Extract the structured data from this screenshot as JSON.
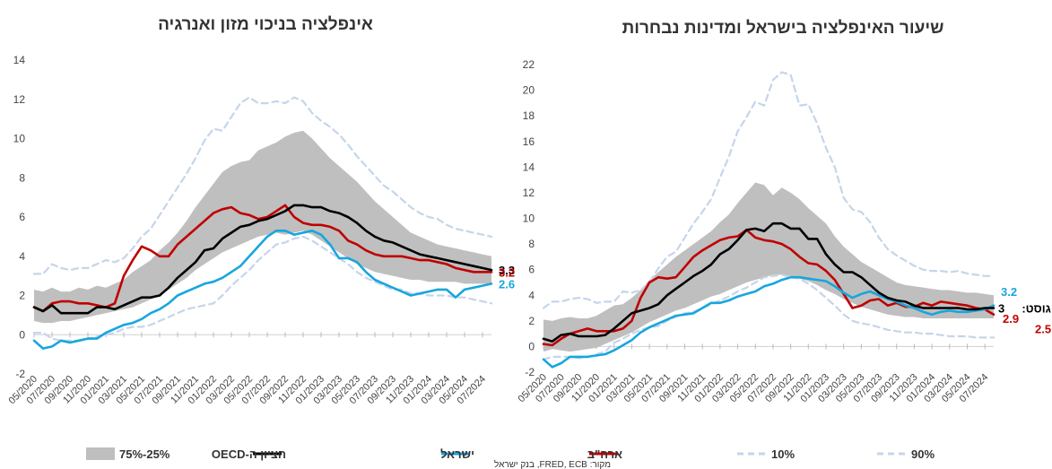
{
  "colors": {
    "band": "#bfbfbf",
    "oecd": "#000000",
    "israel": "#17a6de",
    "usa": "#c00000",
    "pct": "#c5d5ea"
  },
  "legend": {
    "band": "75%-25%",
    "oecd": "חציון ה-OECD",
    "israel": "ישראל",
    "usa": "ארה\"ב",
    "p10": "10%",
    "p90": "90%"
  },
  "source": "מקור: FRED, ECB, בנק ישראל",
  "chart_data": [
    {
      "type": "line",
      "title": "אינפלציה בניכוי מזון ואנרגיה",
      "ylim": [
        -2,
        14
      ],
      "yticks": [
        "-2",
        "0",
        "2",
        "4",
        "6",
        "8",
        "10",
        "12",
        "14"
      ],
      "x_start": "2020-05",
      "x_end": "2024-08",
      "xticks": [
        "05/2020",
        "07/2020",
        "09/2020",
        "11/2020",
        "01/2021",
        "03/2021",
        "05/2021",
        "07/2021",
        "09/2021",
        "11/2021",
        "01/2022",
        "03/2022",
        "05/2022",
        "07/2022",
        "09/2022",
        "11/2022",
        "01/2023",
        "03/2023",
        "05/2023",
        "07/2023",
        "09/2023",
        "11/2023",
        "01/2024",
        "03/2024",
        "05/2024",
        "07/2024"
      ],
      "series": [
        {
          "key": "p90",
          "values": [
            3.1,
            3.1,
            3.6,
            3.4,
            3.3,
            3.4,
            3.4,
            3.6,
            3.8,
            3.7,
            3.9,
            4.4,
            5.0,
            5.4,
            6.1,
            6.8,
            7.5,
            8.2,
            9.0,
            9.9,
            10.5,
            10.4,
            11.1,
            11.8,
            12.1,
            11.8,
            11.8,
            11.9,
            11.8,
            12.1,
            11.9,
            11.3,
            10.9,
            10.6,
            10.2,
            9.7,
            9.1,
            8.6,
            8.1,
            7.6,
            7.3,
            6.9,
            6.5,
            6.2,
            6.0,
            5.9,
            5.6,
            5.4,
            5.3,
            5.2,
            5.1,
            5.0
          ]
        },
        {
          "key": "band_hi",
          "values": [
            2.3,
            2.2,
            2.4,
            2.2,
            2.2,
            2.4,
            2.3,
            2.5,
            2.4,
            2.6,
            2.8,
            3.2,
            3.5,
            3.8,
            4.3,
            4.7,
            5.2,
            5.8,
            6.5,
            7.1,
            7.7,
            8.3,
            8.6,
            8.8,
            8.9,
            9.4,
            9.6,
            9.8,
            10.1,
            10.3,
            10.4,
            10.0,
            9.5,
            9.0,
            8.6,
            8.2,
            7.8,
            7.3,
            6.8,
            6.4,
            6.0,
            5.6,
            5.2,
            5.0,
            4.8,
            4.6,
            4.5,
            4.4,
            4.3,
            4.2,
            4.1,
            4.0
          ]
        },
        {
          "key": "band_lo",
          "values": [
            0.7,
            0.6,
            0.6,
            0.7,
            0.7,
            0.8,
            0.9,
            1.0,
            1.1,
            1.2,
            1.3,
            1.4,
            1.6,
            1.8,
            2.0,
            2.3,
            2.6,
            2.9,
            3.3,
            3.6,
            3.9,
            4.2,
            4.4,
            4.6,
            4.8,
            5.0,
            5.1,
            5.2,
            5.1,
            5.2,
            5.3,
            5.1,
            4.8,
            4.5,
            4.2,
            3.9,
            3.6,
            3.4,
            3.2,
            3.1,
            3.0,
            2.9,
            2.8,
            2.8,
            2.7,
            2.7,
            2.7,
            2.7,
            2.6,
            2.6,
            2.6,
            2.6
          ]
        },
        {
          "key": "oecd",
          "values": [
            1.4,
            1.2,
            1.5,
            1.1,
            1.1,
            1.1,
            1.1,
            1.4,
            1.4,
            1.3,
            1.5,
            1.7,
            1.9,
            1.9,
            2.0,
            2.4,
            2.9,
            3.3,
            3.7,
            4.3,
            4.4,
            4.9,
            5.2,
            5.5,
            5.6,
            5.8,
            5.9,
            6.1,
            6.3,
            6.6,
            6.6,
            6.5,
            6.5,
            6.3,
            6.2,
            6.0,
            5.7,
            5.3,
            5.0,
            4.8,
            4.7,
            4.5,
            4.3,
            4.1,
            4.0,
            3.9,
            3.8,
            3.7,
            3.6,
            3.5,
            3.4,
            3.3
          ]
        },
        {
          "key": "israel",
          "values": [
            -0.3,
            -0.7,
            -0.6,
            -0.3,
            -0.4,
            -0.3,
            -0.2,
            -0.2,
            0.1,
            0.3,
            0.5,
            0.6,
            0.8,
            1.1,
            1.3,
            1.6,
            2.0,
            2.2,
            2.4,
            2.6,
            2.7,
            2.9,
            3.2,
            3.5,
            4.0,
            4.5,
            5.0,
            5.3,
            5.3,
            5.1,
            5.2,
            5.3,
            5.1,
            4.6,
            3.9,
            3.9,
            3.7,
            3.2,
            2.8,
            2.6,
            2.4,
            2.2,
            2.0,
            2.1,
            2.2,
            2.3,
            2.3,
            1.9,
            2.3,
            2.4,
            2.5,
            2.6
          ]
        },
        {
          "key": "usa",
          "values": [
            1.4,
            1.2,
            1.6,
            1.7,
            1.7,
            1.6,
            1.6,
            1.5,
            1.4,
            1.6,
            3.0,
            3.8,
            4.5,
            4.3,
            4.0,
            4.0,
            4.6,
            5.0,
            5.4,
            5.8,
            6.2,
            6.4,
            6.5,
            6.2,
            6.1,
            5.9,
            6.0,
            6.3,
            6.6,
            6.0,
            5.7,
            5.6,
            5.6,
            5.5,
            5.3,
            4.8,
            4.6,
            4.3,
            4.1,
            4.0,
            4.0,
            4.0,
            3.9,
            3.8,
            3.8,
            3.7,
            3.6,
            3.4,
            3.3,
            3.2,
            3.2,
            3.2
          ]
        },
        {
          "key": "p10",
          "values": [
            0.1,
            0.1,
            -0.2,
            -0.3,
            -0.3,
            -0.3,
            -0.2,
            -0.1,
            0.0,
            0.1,
            0.3,
            0.4,
            0.4,
            0.5,
            0.7,
            0.9,
            1.1,
            1.3,
            1.4,
            1.5,
            1.6,
            2.0,
            2.5,
            2.9,
            3.3,
            3.8,
            4.2,
            4.6,
            4.7,
            4.9,
            5.0,
            4.8,
            4.5,
            4.2,
            3.9,
            3.6,
            3.2,
            2.9,
            2.7,
            2.5,
            2.3,
            2.3,
            2.1,
            2.1,
            2.0,
            2.0,
            2.0,
            1.9,
            1.9,
            1.8,
            1.7,
            1.6
          ]
        }
      ],
      "end_labels": [
        {
          "text": "3.3",
          "color": "oecd",
          "y": 3.3
        },
        {
          "text": "3.2",
          "color": "usa",
          "y": 3.2
        },
        {
          "text": "2.6",
          "color": "israel",
          "y": 2.6
        }
      ]
    },
    {
      "type": "line",
      "title": "שיעור האינפלציה בישראל ומדינות נבחרות",
      "ylim": [
        -2,
        22
      ],
      "yticks": [
        "-2",
        "0",
        "2",
        "4",
        "6",
        "8",
        "10",
        "12",
        "14",
        "16",
        "18",
        "20",
        "22"
      ],
      "x_start": "2020-05",
      "x_end": "2024-08",
      "xticks": [
        "05/2020",
        "07/2020",
        "09/2020",
        "11/2020",
        "01/2021",
        "03/2021",
        "05/2021",
        "07/2021",
        "09/2021",
        "11/2021",
        "01/2022",
        "03/2022",
        "05/2022",
        "07/2022",
        "09/2022",
        "11/2022",
        "01/2023",
        "03/2023",
        "05/2023",
        "07/2023",
        "09/2023",
        "11/2023",
        "01/2024",
        "03/2024",
        "05/2024",
        "07/2024"
      ],
      "series": [
        {
          "key": "p90",
          "values": [
            3.0,
            3.5,
            3.5,
            3.7,
            3.8,
            3.7,
            3.4,
            3.5,
            3.5,
            4.3,
            4.2,
            4.4,
            5.0,
            6.1,
            7.0,
            7.4,
            8.5,
            9.6,
            10.5,
            11.5,
            13.2,
            14.8,
            16.8,
            17.9,
            19.1,
            18.8,
            20.8,
            21.4,
            21.2,
            18.8,
            18.9,
            17.4,
            15.5,
            14.0,
            11.6,
            10.7,
            10.5,
            9.7,
            8.5,
            7.6,
            7.1,
            6.7,
            6.3,
            6.0,
            5.9,
            5.9,
            5.8,
            5.9,
            5.7,
            5.6,
            5.5,
            5.5
          ]
        },
        {
          "key": "band_hi",
          "values": [
            2.1,
            2.0,
            2.2,
            2.3,
            2.2,
            2.2,
            2.4,
            2.8,
            3.2,
            3.3,
            3.8,
            4.4,
            5.2,
            5.8,
            6.4,
            7.0,
            7.5,
            8.0,
            8.5,
            9.0,
            9.7,
            10.3,
            11.2,
            12.0,
            12.8,
            12.6,
            11.8,
            12.4,
            12.0,
            11.5,
            10.8,
            10.2,
            9.6,
            8.6,
            7.8,
            7.2,
            6.6,
            6.2,
            5.8,
            5.4,
            5.0,
            4.8,
            4.7,
            4.6,
            4.5,
            4.4,
            4.4,
            4.3,
            4.2,
            4.2,
            4.1,
            4.0
          ]
        },
        {
          "key": "band_lo",
          "values": [
            -0.4,
            -0.2,
            -0.3,
            -0.4,
            -0.3,
            -0.2,
            -0.1,
            0.2,
            0.5,
            0.8,
            1.1,
            1.5,
            1.9,
            2.2,
            2.5,
            2.8,
            3.0,
            3.3,
            3.6,
            3.9,
            4.1,
            4.4,
            4.7,
            5.0,
            5.2,
            5.4,
            5.6,
            5.6,
            5.5,
            5.3,
            5.1,
            4.8,
            4.4,
            4.1,
            3.7,
            3.4,
            3.1,
            2.9,
            2.7,
            2.5,
            2.4,
            2.3,
            2.3,
            2.2,
            2.2,
            2.2,
            2.2,
            2.2,
            2.2,
            2.2,
            2.2,
            2.2
          ]
        },
        {
          "key": "oecd",
          "values": [
            0.6,
            0.4,
            0.9,
            1.0,
            0.8,
            0.8,
            0.8,
            0.9,
            1.4,
            2.0,
            2.6,
            2.8,
            3.0,
            3.3,
            4.0,
            4.5,
            5.0,
            5.5,
            5.9,
            6.4,
            7.2,
            7.6,
            8.3,
            9.1,
            9.2,
            9.0,
            9.6,
            9.6,
            9.2,
            9.2,
            8.4,
            8.4,
            7.2,
            6.4,
            5.8,
            5.8,
            5.4,
            4.8,
            4.2,
            3.8,
            3.6,
            3.5,
            3.2,
            3.0,
            3.0,
            3.0,
            3.0,
            3.0,
            2.9,
            2.9,
            3.0,
            3.0
          ]
        },
        {
          "key": "israel",
          "values": [
            -1.0,
            -1.6,
            -1.3,
            -0.8,
            -0.8,
            -0.8,
            -0.7,
            -0.6,
            -0.3,
            0.1,
            0.5,
            1.1,
            1.5,
            1.8,
            2.1,
            2.4,
            2.5,
            2.6,
            3.0,
            3.4,
            3.4,
            3.6,
            3.9,
            4.1,
            4.3,
            4.7,
            4.9,
            5.2,
            5.4,
            5.4,
            5.3,
            5.2,
            5.1,
            4.7,
            4.2,
            3.8,
            4.1,
            4.3,
            4.0,
            3.7,
            3.5,
            3.2,
            3.0,
            2.7,
            2.5,
            2.7,
            2.8,
            2.7,
            2.7,
            2.8,
            2.9,
            3.2
          ]
        },
        {
          "key": "usa",
          "values": [
            0.2,
            0.1,
            0.6,
            1.0,
            1.2,
            1.4,
            1.2,
            1.2,
            1.2,
            1.4,
            2.0,
            3.8,
            5.0,
            5.4,
            5.3,
            5.4,
            6.2,
            7.0,
            7.5,
            7.9,
            8.3,
            8.5,
            8.6,
            9.1,
            8.5,
            8.3,
            8.2,
            8.0,
            7.6,
            7.0,
            6.5,
            6.4,
            5.9,
            5.2,
            4.1,
            3.0,
            3.2,
            3.6,
            3.7,
            3.2,
            3.4,
            3.1,
            3.1,
            3.4,
            3.2,
            3.5,
            3.4,
            3.3,
            3.2,
            3.0,
            2.9,
            2.5
          ]
        },
        {
          "key": "p10",
          "values": [
            -1.0,
            -0.8,
            -0.8,
            -0.8,
            -0.9,
            -0.8,
            -0.6,
            -0.4,
            0.3,
            0.6,
            1.0,
            1.3,
            1.5,
            1.6,
            2.0,
            2.3,
            2.6,
            2.7,
            3.0,
            3.3,
            3.6,
            3.9,
            4.3,
            4.6,
            5.0,
            5.4,
            5.5,
            5.6,
            5.4,
            5.3,
            4.9,
            4.4,
            3.8,
            3.2,
            2.5,
            2.0,
            1.8,
            1.7,
            1.5,
            1.3,
            1.2,
            1.1,
            1.1,
            1.0,
            1.0,
            0.9,
            0.8,
            0.8,
            0.8,
            0.7,
            0.7,
            0.7
          ]
        }
      ],
      "end_labels": [
        {
          "text": "3.2",
          "color": "israel",
          "y": 4.3
        },
        {
          "text": "3",
          "color": "oecd",
          "y": 3.0,
          "prefix": "אוגוסט:"
        },
        {
          "text": "2.9",
          "color": "usa",
          "y": 2.2
        },
        {
          "text": "2.5",
          "color": "usa",
          "y": 1.4
        }
      ]
    }
  ]
}
